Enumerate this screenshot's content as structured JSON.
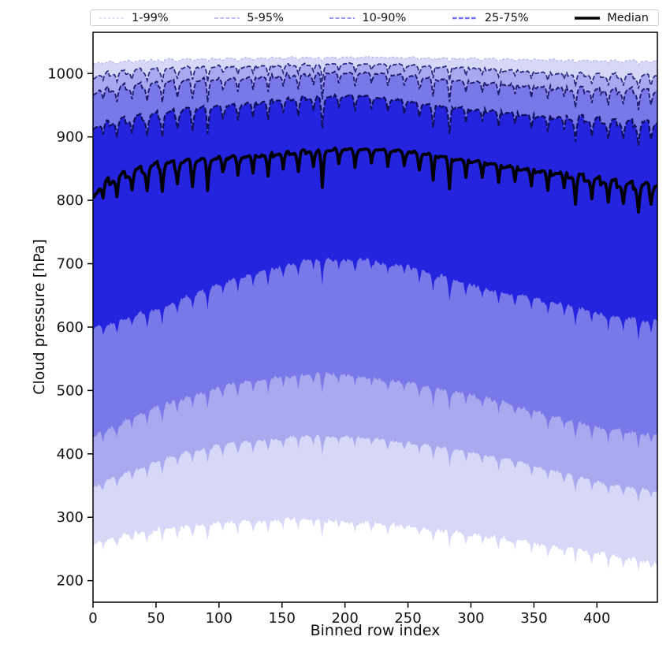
{
  "chart_data": {
    "type": "area",
    "title": "",
    "xlabel": "Binned row index",
    "ylabel": "Cloud pressure [hPa]",
    "xlim": [
      0,
      448
    ],
    "ylim": [
      166,
      1065
    ],
    "xticks": [
      0,
      50,
      100,
      150,
      200,
      250,
      300,
      350,
      400
    ],
    "yticks": [
      200,
      300,
      400,
      500,
      600,
      700,
      800,
      900,
      1000
    ],
    "grid": false,
    "legend": {
      "position": "top",
      "entries": [
        {
          "label": "1-99%",
          "color": "#c9c9f2",
          "dash": "3,2.5",
          "width": 1.2
        },
        {
          "label": "5-95%",
          "color": "#adadf0",
          "dash": "5,2.2",
          "width": 1.5
        },
        {
          "label": "10-90%",
          "color": "#8f8fee",
          "dash": "5,2.5",
          "width": 1.7
        },
        {
          "label": "25-75%",
          "color": "#7272e8",
          "dash": "5.5,2.5",
          "width": 2.4
        },
        {
          "label": "Median",
          "color": "#000000",
          "dash": "",
          "width": 3.6
        }
      ]
    },
    "bands": [
      {
        "name": "1-99%",
        "upper": "p99",
        "lower": "p1",
        "fill": "#d7d7f7",
        "line_color": "#b4b4ea",
        "line_width": 1.2,
        "line_dash": "3,2.5"
      },
      {
        "name": "5-95%",
        "upper": "p95",
        "lower": "p5",
        "fill": "#a9a9ef",
        "line_color": "#26267f",
        "line_width": 1.7,
        "line_dash": "6,2.6"
      },
      {
        "name": "10-90%",
        "upper": "p90",
        "lower": "p10",
        "fill": "#7878e9",
        "line_color": "#1b1b6e",
        "line_width": 1.9,
        "line_dash": "6,2.6"
      },
      {
        "name": "25-75%",
        "upper": "p75",
        "lower": "p25",
        "fill": "#2424de",
        "line_color": "#0f0f5a",
        "line_width": 2.2,
        "line_dash": "7,2.8"
      }
    ],
    "median": {
      "label": "Median",
      "series": "median",
      "color": "#000000",
      "width": 3.8
    },
    "series_anchors": {
      "p99": [
        [
          0,
          1017
        ],
        [
          30,
          1020
        ],
        [
          80,
          1023
        ],
        [
          150,
          1025
        ],
        [
          210,
          1026
        ],
        [
          260,
          1025
        ],
        [
          320,
          1023
        ],
        [
          380,
          1021
        ],
        [
          420,
          1020
        ],
        [
          448,
          1019
        ]
      ],
      "p95": [
        [
          0,
          996
        ],
        [
          20,
          1002
        ],
        [
          50,
          1007
        ],
        [
          100,
          1011
        ],
        [
          150,
          1013
        ],
        [
          200,
          1015
        ],
        [
          240,
          1014
        ],
        [
          280,
          1011
        ],
        [
          320,
          1007
        ],
        [
          360,
          1002
        ],
        [
          400,
          998
        ],
        [
          430,
          996
        ],
        [
          448,
          997
        ]
      ],
      "p90": [
        [
          0,
          972
        ],
        [
          30,
          980
        ],
        [
          60,
          986
        ],
        [
          100,
          991
        ],
        [
          140,
          996
        ],
        [
          180,
          1000
        ],
        [
          215,
          1001
        ],
        [
          250,
          996
        ],
        [
          280,
          991
        ],
        [
          310,
          986
        ],
        [
          340,
          982
        ],
        [
          370,
          978
        ],
        [
          400,
          974
        ],
        [
          448,
          973
        ]
      ],
      "p75": [
        [
          0,
          918
        ],
        [
          30,
          929
        ],
        [
          60,
          939
        ],
        [
          100,
          949
        ],
        [
          140,
          957
        ],
        [
          180,
          963
        ],
        [
          210,
          965
        ],
        [
          240,
          959
        ],
        [
          270,
          951
        ],
        [
          300,
          945
        ],
        [
          330,
          939
        ],
        [
          360,
          933
        ],
        [
          390,
          929
        ],
        [
          420,
          923
        ],
        [
          448,
          921
        ]
      ],
      "median": [
        [
          0,
          810
        ],
        [
          12,
          831
        ],
        [
          25,
          840
        ],
        [
          50,
          856
        ],
        [
          80,
          863
        ],
        [
          110,
          869
        ],
        [
          140,
          873
        ],
        [
          170,
          877
        ],
        [
          200,
          881
        ],
        [
          235,
          879
        ],
        [
          265,
          874
        ],
        [
          290,
          866
        ],
        [
          315,
          859
        ],
        [
          340,
          851
        ],
        [
          370,
          843
        ],
        [
          400,
          833
        ],
        [
          425,
          825
        ],
        [
          448,
          823
        ]
      ],
      "p25": [
        [
          0,
          597
        ],
        [
          30,
          616
        ],
        [
          60,
          635
        ],
        [
          100,
          668
        ],
        [
          140,
          692
        ],
        [
          175,
          708
        ],
        [
          205,
          707
        ],
        [
          245,
          699
        ],
        [
          275,
          682
        ],
        [
          305,
          664
        ],
        [
          335,
          651
        ],
        [
          365,
          639
        ],
        [
          395,
          626
        ],
        [
          425,
          613
        ],
        [
          448,
          608
        ]
      ],
      "p10": [
        [
          0,
          428
        ],
        [
          30,
          456
        ],
        [
          60,
          481
        ],
        [
          100,
          506
        ],
        [
          140,
          520
        ],
        [
          180,
          528
        ],
        [
          210,
          523
        ],
        [
          250,
          513
        ],
        [
          280,
          501
        ],
        [
          310,
          489
        ],
        [
          340,
          473
        ],
        [
          370,
          456
        ],
        [
          400,
          443
        ],
        [
          430,
          433
        ],
        [
          448,
          431
        ]
      ],
      "p5": [
        [
          0,
          348
        ],
        [
          30,
          373
        ],
        [
          60,
          396
        ],
        [
          100,
          413
        ],
        [
          140,
          423
        ],
        [
          180,
          429
        ],
        [
          210,
          425
        ],
        [
          250,
          417
        ],
        [
          280,
          409
        ],
        [
          310,
          399
        ],
        [
          340,
          386
        ],
        [
          370,
          371
        ],
        [
          400,
          356
        ],
        [
          430,
          346
        ],
        [
          448,
          343
        ]
      ],
      "p1": [
        [
          0,
          258
        ],
        [
          30,
          273
        ],
        [
          60,
          283
        ],
        [
          100,
          291
        ],
        [
          140,
          295
        ],
        [
          175,
          297
        ],
        [
          210,
          291
        ],
        [
          250,
          285
        ],
        [
          280,
          279
        ],
        [
          310,
          271
        ],
        [
          340,
          263
        ],
        [
          370,
          253
        ],
        [
          400,
          243
        ],
        [
          430,
          234
        ],
        [
          448,
          230
        ]
      ]
    },
    "texture": {
      "fade_center": 215,
      "fade_span": 200,
      "fade_min": 0.35,
      "spikes": [
        [
          8,
          22
        ],
        [
          19,
          30
        ],
        [
          31,
          26
        ],
        [
          43,
          34
        ],
        [
          55,
          40
        ],
        [
          67,
          30
        ],
        [
          79,
          36
        ],
        [
          91,
          44
        ],
        [
          103,
          28
        ],
        [
          115,
          34
        ],
        [
          127,
          30
        ],
        [
          139,
          36
        ],
        [
          151,
          26
        ],
        [
          163,
          32
        ],
        [
          175,
          24
        ],
        [
          182,
          55
        ],
        [
          195,
          20
        ],
        [
          208,
          26
        ],
        [
          221,
          18
        ],
        [
          234,
          22
        ],
        [
          247,
          20
        ],
        [
          259,
          30
        ],
        [
          270,
          44
        ],
        [
          283,
          52
        ],
        [
          296,
          30
        ],
        [
          309,
          26
        ],
        [
          322,
          30
        ],
        [
          335,
          24
        ],
        [
          348,
          28
        ],
        [
          361,
          32
        ],
        [
          374,
          26
        ],
        [
          383,
          44
        ],
        [
          396,
          30
        ],
        [
          409,
          34
        ],
        [
          421,
          30
        ],
        [
          433,
          40
        ],
        [
          443,
          24
        ]
      ],
      "series": {
        "p99": {
          "period": 16,
          "saw": 3,
          "jitter": 1.2,
          "spike": 0.12,
          "seed": 11
        },
        "p95": {
          "period": 13,
          "saw": 8,
          "jitter": 1.5,
          "spike": 0.45,
          "seed": 23
        },
        "p90": {
          "period": 13,
          "saw": 11,
          "jitter": 2.0,
          "spike": 0.7,
          "seed": 37
        },
        "p75": {
          "period": 13,
          "saw": 12,
          "jitter": 2.0,
          "spike": 0.85,
          "seed": 53
        },
        "median": {
          "period": 13,
          "saw": 13,
          "jitter": 2.0,
          "spike": 1.0,
          "seed": 71
        },
        "p25": {
          "period": 0,
          "saw": 0,
          "jitter": 5.0,
          "spike": 0.7,
          "seed": 89
        },
        "p10": {
          "period": 0,
          "saw": 0,
          "jitter": 5.0,
          "spike": 0.6,
          "seed": 101
        },
        "p5": {
          "period": 0,
          "saw": 0,
          "jitter": 4.0,
          "spike": 0.55,
          "seed": 113
        },
        "p1": {
          "period": 0,
          "saw": 0,
          "jitter": 6.0,
          "spike": 0.5,
          "seed": 131
        }
      }
    },
    "axis_style": {
      "spine_color": "#000000",
      "tick_len": 7,
      "tick_label_size": 18,
      "axis_label_size": 19
    }
  }
}
